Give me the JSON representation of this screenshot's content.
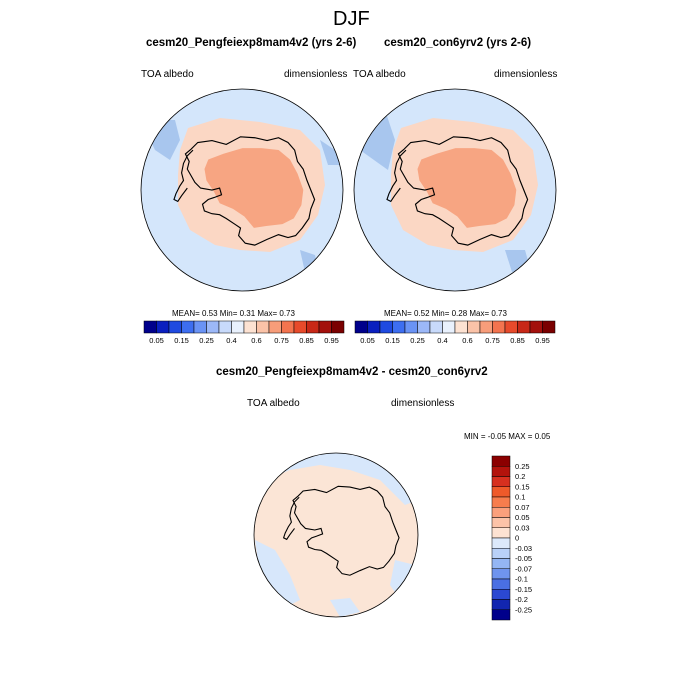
{
  "main_title": "DJF",
  "colors": {
    "ocean_low": "#d4e6fb",
    "sea_ice": "#a8c6ee",
    "land_low": "#fbd7c4",
    "land_mid": "#f7a582",
    "diff_pos": "#fbe5d6",
    "diff_neg": "#d7e7fb",
    "coast": "#000000"
  },
  "panels": [
    {
      "title": "cesm20_Pengfeiexp8mam4v2 (yrs 2-6)",
      "left_label": "TOA albedo",
      "right_label": "dimensionless",
      "stats": "MEAN=   0.53   Min=   0.31   Max=   0.73",
      "colorbar": {
        "tick_labels": [
          "0.05",
          "0.15",
          "0.25",
          "0.4",
          "0.6",
          "0.75",
          "0.85",
          "0.95"
        ],
        "colors": [
          "#00008b",
          "#0a1fbf",
          "#1f4ae0",
          "#3d6ef0",
          "#6a93f5",
          "#9cb8f8",
          "#c8dafb",
          "#e9f1fd",
          "#fde2d2",
          "#fbc3a8",
          "#f79d7a",
          "#f3744f",
          "#e74a2b",
          "#c82817",
          "#a3100c",
          "#7a0000"
        ]
      }
    },
    {
      "title": "cesm20_con6yrv2 (yrs 2-6)",
      "left_label": "TOA albedo",
      "right_label": "dimensionless",
      "stats": "MEAN=   0.52   Min=   0.28   Max=   0.73",
      "colorbar": {
        "tick_labels": [
          "0.05",
          "0.15",
          "0.25",
          "0.4",
          "0.6",
          "0.75",
          "0.85",
          "0.95"
        ],
        "colors": [
          "#00008b",
          "#0a1fbf",
          "#1f4ae0",
          "#3d6ef0",
          "#6a93f5",
          "#9cb8f8",
          "#c8dafb",
          "#e9f1fd",
          "#fde2d2",
          "#fbc3a8",
          "#f79d7a",
          "#f3744f",
          "#e74a2b",
          "#c82817",
          "#a3100c",
          "#7a0000"
        ]
      }
    }
  ],
  "diff_panel": {
    "title": "cesm20_Pengfeiexp8mam4v2 - cesm20_con6yrv2",
    "left_label": "TOA albedo",
    "right_label": "dimensionless",
    "stats": "MIN =  -0.05 MAX =   0.05",
    "colorbar": {
      "tick_labels": [
        "0.25",
        "0.2",
        "0.15",
        "0.1",
        "0.07",
        "0.05",
        "0.03",
        "0",
        "-0.03",
        "-0.05",
        "-0.07",
        "-0.1",
        "-0.15",
        "-0.2",
        "-0.25"
      ],
      "colors": [
        "#8b0000",
        "#b3130c",
        "#d7301f",
        "#ef5a2a",
        "#f77d4d",
        "#fba07c",
        "#fcc3a8",
        "#fde2d2",
        "#dce9fb",
        "#b9d1f8",
        "#94b6f4",
        "#6f94ee",
        "#4a6fe3",
        "#2b48d1",
        "#1226b0",
        "#00008b"
      ]
    }
  }
}
